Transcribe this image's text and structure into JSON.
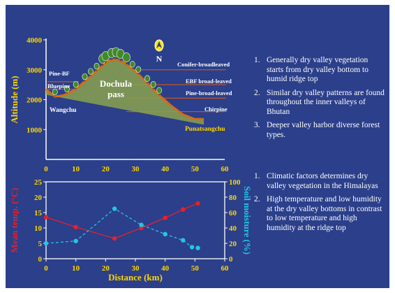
{
  "chart_data": [
    {
      "type": "area",
      "ylabel": "Altitude (m)",
      "yticks": [
        1000,
        2000,
        3000,
        4000
      ],
      "ylim": [
        0,
        4000
      ],
      "profile": {
        "x": [
          0,
          3,
          6,
          10,
          14,
          18,
          21,
          23.5,
          26,
          30,
          34,
          38,
          42,
          46,
          50,
          53
        ],
        "altitude": [
          2350,
          2100,
          2150,
          2350,
          2700,
          3050,
          3300,
          3350,
          3250,
          2950,
          2550,
          2150,
          1800,
          1500,
          1350,
          1350
        ]
      },
      "site_labels": {
        "wangchu": "Wangchu",
        "dochula": "Dochula\npass",
        "punatsangchu": "Punatsangchu"
      },
      "zones": [
        {
          "label": "Pine-BF",
          "altitude": 2600,
          "side": "left"
        },
        {
          "label": "Bluepine",
          "altitude": 2350,
          "side": "left"
        },
        {
          "label": "Conifer-broadleaved",
          "altitude": 3000,
          "side": "right"
        },
        {
          "label": "EBF broad-leaved",
          "altitude": 2500,
          "side": "right"
        },
        {
          "label": "Pine-broad-leaved",
          "altitude": 2050,
          "side": "right"
        },
        {
          "label": "Chirpine",
          "altitude": 1600,
          "side": "right"
        }
      ],
      "north_label": "N"
    },
    {
      "type": "line",
      "xlabel": "Distance (km)",
      "xticks": [
        0,
        10,
        20,
        30,
        40,
        50,
        60
      ],
      "xlim": [
        0,
        60
      ],
      "y_left": {
        "label": "Mean temp. (°C)",
        "ticks": [
          0,
          5,
          10,
          15,
          20,
          25
        ],
        "lim": [
          0,
          25
        ]
      },
      "y_right": {
        "label": "Soil moisture (%)",
        "ticks": [
          0,
          20,
          40,
          60,
          80,
          100
        ],
        "lim": [
          0,
          100
        ]
      },
      "series": [
        {
          "name": "Mean temp.",
          "axis": "left",
          "color": "#e8202a",
          "style": "solid",
          "x": [
            0,
            10,
            23,
            32,
            40,
            46,
            51
          ],
          "values": [
            13.5,
            10.3,
            6.6,
            10,
            13.3,
            16,
            18
          ]
        },
        {
          "name": "Soil moisture",
          "axis": "right",
          "color": "#25c4e6",
          "style": "dashed",
          "x": [
            0,
            10,
            23,
            32,
            40,
            46,
            49,
            51
          ],
          "values": [
            20,
            23,
            65,
            44,
            32,
            24,
            15,
            14
          ]
        }
      ]
    }
  ],
  "bullets_top": [
    {
      "num": "1.",
      "text": "Generally dry valley vegetation starts from dry valley bottom to humid ridge top"
    },
    {
      "num": "2.",
      "text": "Similar dry valley patterns are found throughout the inner valleys of Bhutan"
    },
    {
      "num": "3.",
      "text": "Deeper valley harbor diverse forest types."
    }
  ],
  "bullets_bottom": [
    {
      "num": "1.",
      "text": "Climatic factors determines dry valley vegetation in the Himalayas"
    },
    {
      "num": "2.",
      "text": "High temperature and low humidity at the dry valley bottoms in contrast to low temperature and high humidity at the ridge top"
    }
  ],
  "colors": {
    "background": "#2b3f8a",
    "axis_text": "#ffd700",
    "temp": "#e8202a",
    "moisture": "#25c4e6",
    "profile_line": "#d76a1a",
    "profile_fill": "#8aa24c",
    "tree": "#3f8a2a",
    "zone_line": "#c2572a"
  }
}
